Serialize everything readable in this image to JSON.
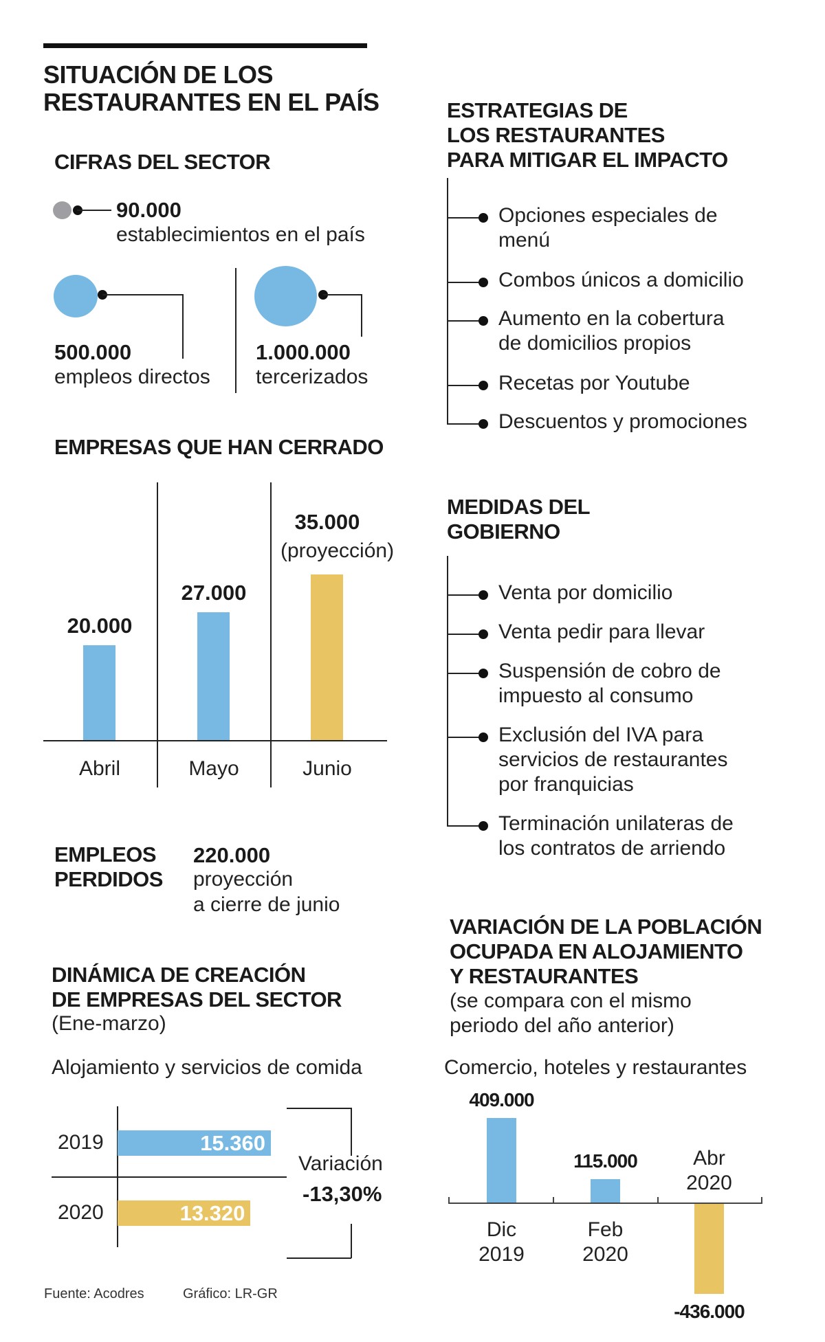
{
  "colors": {
    "blue": "#77b9e3",
    "yellow": "#e8c463",
    "gray": "#9e9ea3"
  },
  "title": [
    "SITUACIÓN DE LOS",
    "RESTAURANTES EN EL PAÍS"
  ],
  "cifras": {
    "heading": "CIFRAS DEL SECTOR",
    "establecimientos": {
      "value": "90.000",
      "label": "establecimientos en el país"
    },
    "directos": {
      "value": "500.000",
      "label": "empleos directos"
    },
    "tercerizados": {
      "value": "1.000.000",
      "label": "tercerizados"
    }
  },
  "cerradas": {
    "heading": "EMPRESAS QUE HAN CERRADO",
    "projection_note": "(proyección)"
  },
  "empleos": {
    "heading": [
      "EMPLEOS",
      "PERDIDOS"
    ],
    "value": "220.000",
    "note": [
      "proyección",
      "a cierre de junio"
    ]
  },
  "dinamica": {
    "heading": [
      "DINÁMICA DE CREACIÓN",
      "DE EMPRESAS DEL SECTOR"
    ],
    "period": "(Ene-marzo)",
    "subtitle": "Alojamiento y servicios de comida",
    "variation_label": "Variación",
    "variation_value": "-13,30%"
  },
  "estrategias": {
    "heading": [
      "ESTRATEGIAS DE",
      "LOS RESTAURANTES",
      "PARA MITIGAR EL IMPACTO"
    ],
    "items": [
      "Opciones especiales de\nmenú",
      "Combos únicos a domicilio",
      "Aumento en la cobertura\nde domicilios propios",
      "Recetas por Youtube",
      "Descuentos y promociones"
    ]
  },
  "medidas": {
    "heading": [
      "MEDIDAS DEL",
      "GOBIERNO"
    ],
    "items": [
      "Venta por domicilio",
      "Venta pedir para llevar",
      "Suspensión de cobro de\nimpuesto al consumo",
      "Exclusión del IVA para\nservicios de restaurantes\npor franquicias",
      "Terminación unilateras de\nlos contratos de arriendo"
    ]
  },
  "variacion": {
    "heading": [
      "VARIACIÓN DE LA POBLACIÓN",
      "OCUPADA EN ALOJAMIENTO",
      "Y RESTAURANTES"
    ],
    "note": [
      "(se compara con el mismo",
      "periodo del año anterior)"
    ],
    "subtitle": "Comercio, hoteles y restaurantes"
  },
  "footer": {
    "source": "Fuente: Acodres",
    "graphic": "Gráfico: LR-GR"
  },
  "chart_data": [
    {
      "type": "bar",
      "title": "EMPRESAS QUE HAN CERRADO",
      "categories": [
        "Abril",
        "Mayo",
        "Junio"
      ],
      "values": [
        20000,
        27000,
        35000
      ],
      "labels": [
        "20.000",
        "27.000",
        "35.000"
      ],
      "projected": [
        false,
        false,
        true
      ]
    },
    {
      "type": "bar",
      "orientation": "horizontal",
      "title": "DINÁMICA DE CREACIÓN DE EMPRESAS DEL SECTOR",
      "categories": [
        "2019",
        "2020"
      ],
      "values": [
        15360,
        13320
      ],
      "labels": [
        "15.360",
        "13.320"
      ]
    },
    {
      "type": "bar",
      "title": "VARIACIÓN DE LA POBLACIÓN OCUPADA EN ALOJAMIENTO Y RESTAURANTES",
      "categories": [
        "Dic\n2019",
        "Feb\n2020",
        "Abr\n2020"
      ],
      "values": [
        409000,
        115000,
        -436000
      ],
      "labels": [
        "409.000",
        "115.000",
        "-436.000"
      ]
    }
  ]
}
